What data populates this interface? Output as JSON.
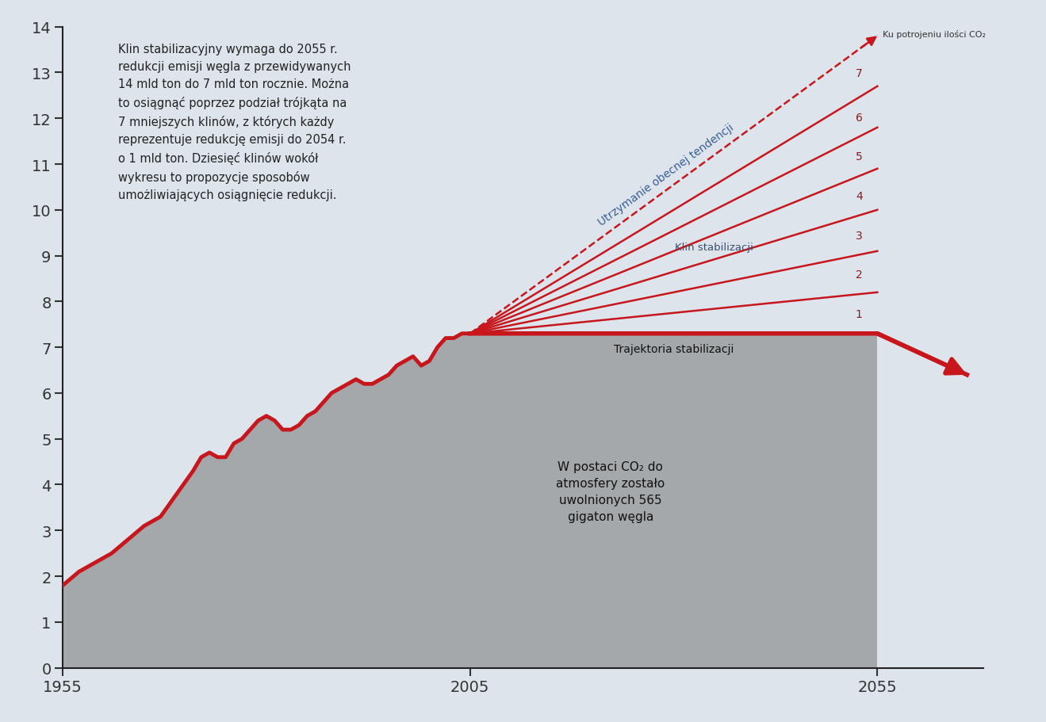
{
  "chart_data": {
    "type": "line",
    "xlim": [
      1955,
      2068
    ],
    "ylim": [
      0,
      14
    ],
    "xticks": [
      1955,
      2005,
      2055
    ],
    "yticks": [
      0,
      1,
      2,
      3,
      4,
      5,
      6,
      7,
      8,
      9,
      10,
      11,
      12,
      13,
      14
    ],
    "history": {
      "x": [
        1955,
        1957,
        1959,
        1961,
        1963,
        1965,
        1967,
        1969,
        1971,
        1972,
        1973,
        1974,
        1975,
        1976,
        1977,
        1978,
        1979,
        1980,
        1981,
        1982,
        1983,
        1984,
        1985,
        1986,
        1987,
        1988,
        1989,
        1990,
        1991,
        1992,
        1993,
        1994,
        1995,
        1996,
        1997,
        1998,
        1999,
        2000,
        2001,
        2002,
        2003,
        2004,
        2005
      ],
      "values": [
        1.8,
        2.1,
        2.3,
        2.5,
        2.8,
        3.1,
        3.3,
        3.8,
        4.3,
        4.6,
        4.7,
        4.6,
        4.6,
        4.9,
        5.0,
        5.2,
        5.4,
        5.5,
        5.4,
        5.2,
        5.2,
        5.3,
        5.5,
        5.6,
        5.8,
        6.0,
        6.1,
        6.2,
        6.3,
        6.2,
        6.2,
        6.3,
        6.4,
        6.6,
        6.7,
        6.8,
        6.6,
        6.7,
        7.0,
        7.2,
        7.2,
        7.3,
        7.3
      ],
      "color": "#c8161d"
    },
    "stabilization": {
      "name": "Trajektoria stabilizacji",
      "x": [
        2005,
        2055,
        2066
      ],
      "values": [
        7.3,
        7.3,
        6.4
      ],
      "color": "#c8161d"
    },
    "wedges": {
      "name": "Klin stabilizacji",
      "x": [
        2005,
        2055
      ],
      "start_value": 7.3,
      "end_values": [
        8.2,
        9.1,
        10.0,
        10.9,
        11.8,
        12.7
      ],
      "labels": [
        1,
        2,
        3,
        4,
        5,
        6,
        7
      ],
      "color": "#c8161d"
    },
    "trend": {
      "name": "Utrzymanie obecnej tendencji",
      "note": "Ku potrojeniu ilości CO₂",
      "x": [
        2005,
        2055
      ],
      "values": [
        7.3,
        13.8
      ],
      "line_style": "dashed",
      "color": "#c8161d"
    },
    "annotations": [
      "Klin stabilizacyjny wymaga do 2055 r.\nredukcji emisji węgla z przewidywanych\n14 mld ton do 7 mld ton rocznie. Można\nto osiągnąć poprzez podział trójkąta na\n7 mniejszych klinów, z których każdy\nreprezentuje redukcję emisji do 2054 r.\no 1 mld ton. Dziesięć klinów wokół\nwykresu to propozycje sposobów\numożliwiających osiągnięcie redukcji.",
      "W postaci CO₂ do\natmosfery zostało\nuwolnionych 565\ngigaton węgla"
    ]
  }
}
